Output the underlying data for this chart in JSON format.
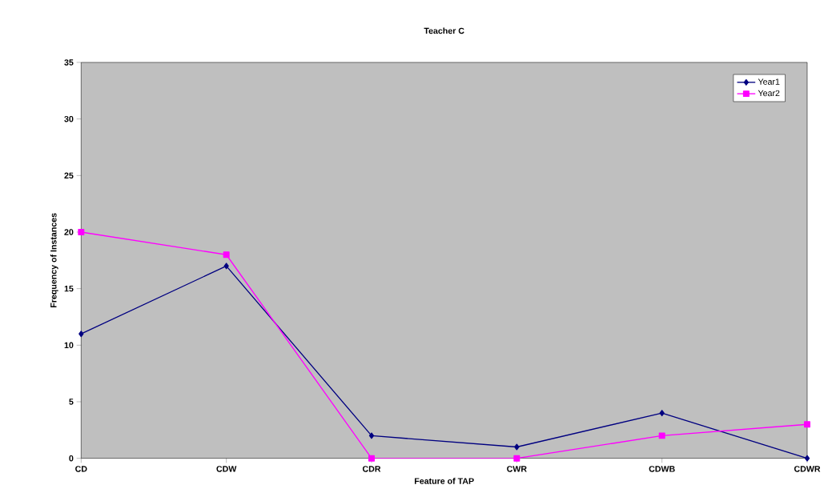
{
  "chart_data": {
    "type": "line",
    "title": "Teacher C",
    "xlabel": "Feature of TAP",
    "ylabel": "Frequency of Instances",
    "categories": [
      "CD",
      "CDW",
      "CDR",
      "CWR",
      "CDWB",
      "CDWR"
    ],
    "series": [
      {
        "name": "Year1",
        "color": "#000080",
        "values": [
          11,
          17,
          2,
          1,
          4,
          0
        ],
        "marker": "diamond"
      },
      {
        "name": "Year2",
        "color": "#ff00ff",
        "values": [
          20,
          18,
          0,
          0,
          2,
          3
        ],
        "marker": "square"
      }
    ],
    "ylim": [
      0,
      35
    ],
    "yticks": [
      0,
      5,
      10,
      15,
      20,
      25,
      30,
      35
    ],
    "grid": false,
    "legend": "top right",
    "line_style": "solid"
  }
}
